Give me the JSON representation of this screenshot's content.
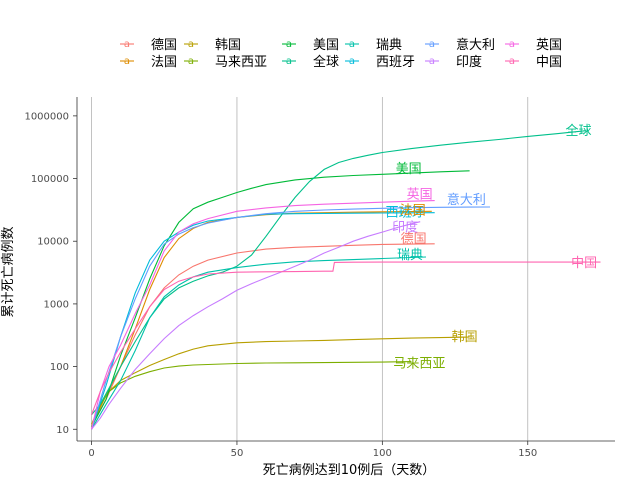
{
  "chart_data": {
    "type": "line",
    "title": "",
    "xlabel": "死亡病例达到10例后（天数）",
    "ylabel": "累计死亡病例数",
    "x_ticks": [
      0,
      50,
      100,
      150
    ],
    "y_ticks": [
      10,
      100,
      1000,
      10000,
      100000,
      1000000
    ],
    "y_tick_labels": [
      "10",
      "100",
      "1000",
      "10000",
      "100000",
      "1000000"
    ],
    "xlim": [
      -5,
      180
    ],
    "ylim": [
      6.5,
      2000000
    ],
    "y_scale": "log",
    "legend_position": "top",
    "grid": "vertical-major",
    "series": [
      {
        "name": "德国",
        "color": "#F8766D",
        "x": [
          0,
          5,
          10,
          15,
          20,
          25,
          30,
          35,
          40,
          50,
          60,
          70,
          80,
          90,
          100,
          110,
          118
        ],
        "y": [
          11,
          30,
          100,
          320,
          900,
          1800,
          2900,
          4000,
          5000,
          6500,
          7500,
          8000,
          8300,
          8600,
          8900,
          9000,
          9100
        ]
      },
      {
        "name": "法国",
        "color": "#DE8C00",
        "x": [
          0,
          5,
          10,
          15,
          20,
          25,
          30,
          35,
          40,
          50,
          60,
          70,
          80,
          90,
          100,
          110,
          117
        ],
        "y": [
          11,
          35,
          100,
          400,
          1700,
          5500,
          11000,
          16000,
          20000,
          24000,
          26500,
          28000,
          28500,
          29000,
          29500,
          29800,
          30000
        ]
      },
      {
        "name": "韩国",
        "color": "#B79F00",
        "x": [
          0,
          3,
          6,
          10,
          15,
          20,
          25,
          30,
          35,
          40,
          50,
          60,
          70,
          80,
          90,
          100,
          110,
          120,
          130
        ],
        "y": [
          12,
          25,
          40,
          60,
          80,
          104,
          130,
          160,
          190,
          215,
          240,
          250,
          256,
          262,
          270,
          278,
          285,
          290,
          295
        ]
      },
      {
        "name": "马来西亚",
        "color": "#7CAE00",
        "x": [
          0,
          3,
          6,
          10,
          15,
          20,
          25,
          30,
          35,
          40,
          50,
          60,
          70,
          80,
          90,
          100,
          110
        ],
        "y": [
          10,
          24,
          40,
          55,
          70,
          83,
          95,
          102,
          106,
          108,
          112,
          114,
          115,
          116,
          117,
          118,
          120
        ]
      },
      {
        "name": "美国",
        "color": "#00BA38",
        "x": [
          0,
          5,
          10,
          15,
          20,
          25,
          30,
          35,
          40,
          45,
          50,
          55,
          60,
          70,
          80,
          90,
          100,
          110,
          120,
          130
        ],
        "y": [
          11,
          30,
          150,
          600,
          2500,
          8500,
          20000,
          33000,
          42000,
          50000,
          60000,
          70000,
          80000,
          95000,
          105000,
          112000,
          117000,
          122000,
          128000,
          133000
        ]
      },
      {
        "name": "全球",
        "color": "#00C08B",
        "x": [
          0,
          3,
          6,
          10,
          15,
          20,
          25,
          30,
          35,
          40,
          45,
          50,
          55,
          60,
          65,
          70,
          75,
          80,
          85,
          90,
          95,
          100,
          110,
          120,
          130,
          140,
          150,
          160,
          170
        ],
        "y": [
          17,
          25,
          45,
          100,
          250,
          600,
          1200,
          1800,
          2300,
          2800,
          3200,
          4000,
          6000,
          12000,
          25000,
          50000,
          90000,
          140000,
          180000,
          210000,
          235000,
          260000,
          300000,
          340000,
          380000,
          420000,
          470000,
          520000,
          580000
        ]
      },
      {
        "name": "瑞典",
        "color": "#00C1AA",
        "x": [
          0,
          5,
          10,
          15,
          20,
          25,
          30,
          35,
          40,
          50,
          60,
          70,
          80,
          90,
          100,
          110,
          115
        ],
        "y": [
          10,
          25,
          60,
          180,
          600,
          1300,
          2000,
          2700,
          3200,
          3800,
          4300,
          4700,
          4900,
          5100,
          5300,
          5500,
          5600
        ]
      },
      {
        "name": "西班牙",
        "color": "#00BBDA",
        "x": [
          0,
          5,
          10,
          15,
          20,
          25,
          30,
          35,
          40,
          50,
          60,
          70,
          80,
          90,
          100,
          110,
          118
        ],
        "y": [
          10,
          50,
          300,
          1500,
          5000,
          10000,
          14000,
          18000,
          21000,
          24000,
          27000,
          27500,
          27800,
          28000,
          28200,
          28400,
          28500
        ]
      },
      {
        "name": "意大利",
        "color": "#619CFF",
        "x": [
          0,
          5,
          10,
          15,
          20,
          25,
          30,
          35,
          40,
          50,
          60,
          70,
          80,
          90,
          100,
          110,
          120,
          130,
          137
        ],
        "y": [
          10,
          60,
          300,
          1200,
          4000,
          9000,
          13000,
          16500,
          19500,
          24000,
          27500,
          30000,
          31500,
          32500,
          33500,
          34300,
          34800,
          35000,
          35200
        ]
      },
      {
        "name": "印度",
        "color": "#C77CFF",
        "x": [
          0,
          3,
          6,
          10,
          15,
          20,
          25,
          30,
          35,
          40,
          45,
          50,
          55,
          60,
          65,
          70,
          75,
          80,
          85,
          90,
          95,
          100,
          105,
          110,
          113
        ],
        "y": [
          10,
          15,
          25,
          45,
          90,
          160,
          280,
          450,
          650,
          900,
          1200,
          1650,
          2100,
          2600,
          3200,
          4000,
          5000,
          6500,
          8000,
          10000,
          12000,
          14000,
          16500,
          19000,
          20500
        ]
      },
      {
        "name": "英国",
        "color": "#F564E3",
        "x": [
          0,
          3,
          6,
          10,
          15,
          20,
          25,
          30,
          35,
          40,
          50,
          60,
          70,
          80,
          90,
          100,
          110,
          118
        ],
        "y": [
          10,
          40,
          100,
          220,
          700,
          2000,
          7000,
          14000,
          19000,
          23000,
          30000,
          34000,
          37000,
          39000,
          40500,
          42000,
          43500,
          44500
        ]
      },
      {
        "name": "中国",
        "color": "#FF64B0",
        "x": [
          0,
          3,
          6,
          10,
          15,
          20,
          25,
          30,
          35,
          40,
          50,
          60,
          70,
          80,
          83,
          83.5,
          90,
          100,
          120,
          140,
          160,
          175
        ],
        "y": [
          17,
          40,
          80,
          170,
          400,
          900,
          1700,
          2300,
          2700,
          3000,
          3200,
          3250,
          3280,
          3320,
          3330,
          4600,
          4630,
          4640,
          4640,
          4640,
          4640,
          4640
        ]
      }
    ],
    "labels": [
      {
        "series": "全球",
        "text": "全球"
      },
      {
        "series": "美国",
        "text": "美国"
      },
      {
        "series": "英国",
        "text": "英国"
      },
      {
        "series": "意大利",
        "text": "意大利"
      },
      {
        "series": "印度",
        "text": "印度"
      },
      {
        "series": "西班牙",
        "text": "西班牙"
      },
      {
        "series": "法国",
        "text": "法国"
      },
      {
        "series": "德国",
        "text": "德国"
      },
      {
        "series": "瑞典",
        "text": "瑞典"
      },
      {
        "series": "中国",
        "text": "中国"
      },
      {
        "series": "韩国",
        "text": "韩国"
      },
      {
        "series": "马来西亚",
        "text": "马来西亚"
      }
    ],
    "legend_glyph": "a"
  }
}
